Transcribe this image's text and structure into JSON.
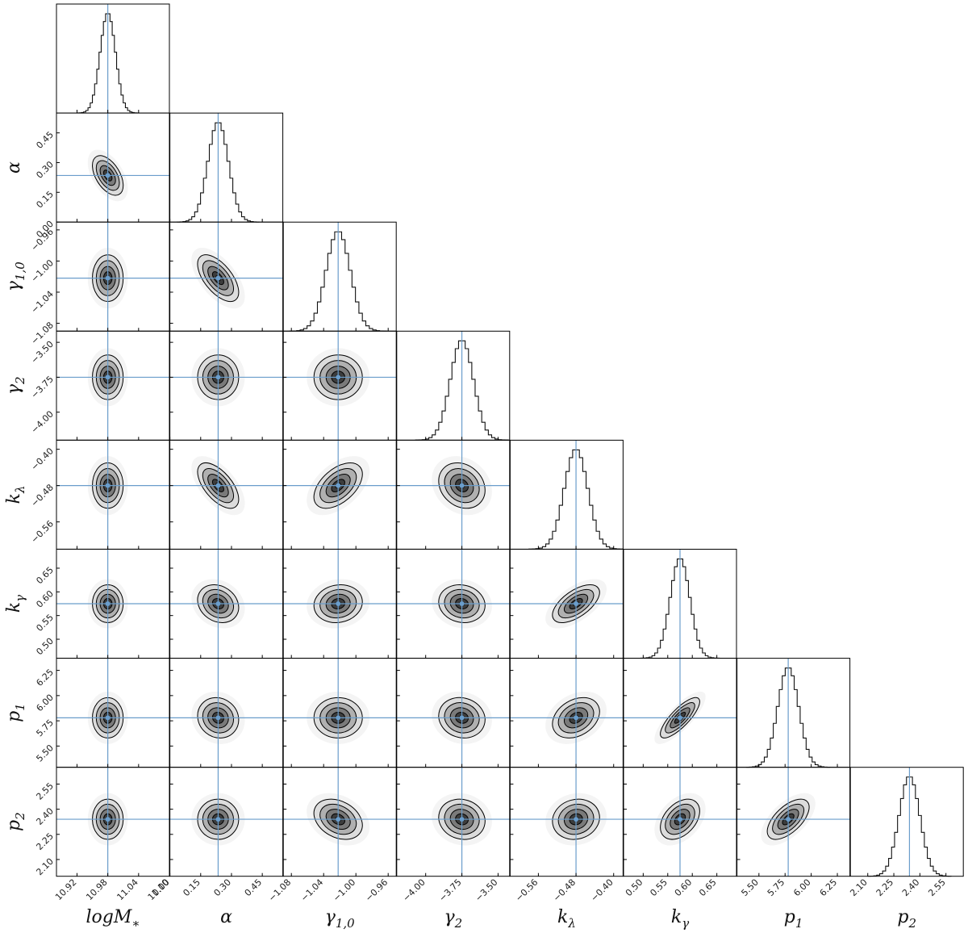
{
  "chart_data": {
    "type": "corner",
    "truth_color": "#6a9dcb",
    "params": [
      {
        "label": "logM",
        "label_sub": "∗",
        "truth": 10.98,
        "mean": 10.98,
        "sigma": 0.015,
        "lim": [
          10.88,
          11.1
        ],
        "ticks": [
          10.92,
          10.98,
          11.04,
          {
            "value": 11.1,
            "label": "11.10"
          }
        ]
      },
      {
        "label": "α",
        "truth": 0.235,
        "mean": 0.235,
        "sigma": 0.05,
        "lim": [
          0,
          0.55
        ],
        "ticks": [
          {
            "value": 0,
            "label": "0.00"
          },
          0.15,
          {
            "value": 0.3,
            "label": "0.30"
          },
          0.45
        ]
      },
      {
        "label": "γ",
        "label_sub": "1,0",
        "truth": -1.022,
        "mean": -1.022,
        "sigma": 0.015,
        "lim": [
          -1.09,
          -0.95
        ],
        "ticks": [
          {
            "value": -1.08,
            "label": "−1.08"
          },
          {
            "value": -1.04,
            "label": "−1.04"
          },
          {
            "value": -1,
            "label": "−1.00"
          },
          {
            "value": -0.96,
            "label": "−0.96"
          }
        ]
      },
      {
        "label": "γ",
        "label_sub": "2",
        "truth": -3.75,
        "mean": -3.75,
        "sigma": 0.08,
        "lim": [
          -4.2,
          -3.42
        ],
        "ticks": [
          {
            "value": -4,
            "label": "−4.00"
          },
          {
            "value": -3.75,
            "label": "−3.75"
          },
          {
            "value": -3.5,
            "label": "−3.50"
          }
        ]
      },
      {
        "label": "k",
        "label_sub": "λ",
        "truth": -0.48,
        "mean": -0.48,
        "sigma": 0.025,
        "lim": [
          -0.62,
          -0.38
        ],
        "ticks": [
          {
            "value": -0.56,
            "label": "−0.56"
          },
          {
            "value": -0.48,
            "label": "−0.48"
          },
          {
            "value": -0.4,
            "label": "−0.40"
          }
        ]
      },
      {
        "label": "k",
        "label_sub": "γ",
        "truth": 0.575,
        "mean": 0.575,
        "sigma": 0.02,
        "lim": [
          0.46,
          0.69
        ],
        "ticks": [
          {
            "value": 0.5,
            "label": "0.50"
          },
          0.55,
          {
            "value": 0.6,
            "label": "0.60"
          },
          0.65
        ]
      },
      {
        "label": "p",
        "label_sub": "1",
        "truth": 5.78,
        "mean": 5.78,
        "sigma": 0.1,
        "lim": [
          5.29,
          6.37
        ],
        "ticks": [
          {
            "value": 5.5,
            "label": "5.50"
          },
          5.75,
          {
            "value": 6,
            "label": "6.00"
          },
          6.25
        ]
      },
      {
        "label": "p",
        "label_sub": "2",
        "truth": 2.34,
        "mean": 2.34,
        "sigma": 0.06,
        "lim": [
          2.0,
          2.65
        ],
        "ticks": [
          {
            "value": 2.1,
            "label": "2.10"
          },
          2.25,
          {
            "value": 2.4,
            "label": "2.40"
          },
          2.55
        ]
      }
    ],
    "correlation": [
      [],
      [
        -0.5
      ],
      [
        0,
        -0.6
      ],
      [
        0,
        0,
        0
      ],
      [
        0,
        -0.6,
        0.5,
        -0.2
      ],
      [
        0,
        -0.2,
        0.1,
        -0.1,
        0.6
      ],
      [
        0,
        -0.1,
        0,
        -0.1,
        0.3,
        0.8
      ],
      [
        0,
        0,
        -0.3,
        -0.1,
        0.1,
        0.4,
        0.6
      ]
    ]
  }
}
